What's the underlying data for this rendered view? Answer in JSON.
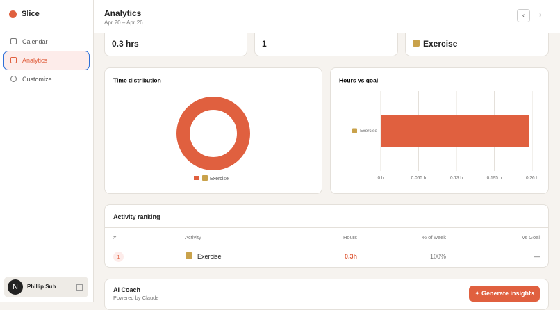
{
  "sidebar": {
    "app_name": "Slice",
    "nav": [
      "Calendar",
      "Analytics",
      "Customize"
    ],
    "user": {
      "initial": "N",
      "name": "Phillip Suh"
    }
  },
  "header": {
    "title": "Analytics",
    "subtitle": "Apr 20 – Apr 26"
  },
  "stats": [
    "0.3 hrs",
    "1",
    "Exercise"
  ],
  "chart_data": [
    {
      "type": "pie",
      "title": "Time distribution",
      "categories": [
        "Exercise"
      ],
      "values": [
        100
      ],
      "colors": [
        "#e0603f"
      ],
      "donut": true
    },
    {
      "type": "bar",
      "title": "Hours vs goal",
      "orientation": "horizontal",
      "categories": [
        "Exercise"
      ],
      "values": [
        0.255
      ],
      "color": "#e0603f",
      "xlim": [
        0,
        0.26
      ],
      "xticks": [
        {
          "value": 0,
          "label": "0 h"
        },
        {
          "value": 0.065,
          "label": "0.065 h"
        },
        {
          "value": 0.13,
          "label": "0.13 h"
        },
        {
          "value": 0.195,
          "label": "0.195 h"
        },
        {
          "value": 0.26,
          "label": "0.26 h"
        }
      ],
      "grid": true
    }
  ],
  "table": {
    "title": "Activity ranking",
    "columns": [
      "#",
      "Activity",
      "Hours",
      "% of week",
      "vs Goal"
    ],
    "rows": [
      [
        "1",
        "Exercise",
        "0.3h",
        "100%",
        "—"
      ]
    ]
  },
  "ai_coach": {
    "title": "AI Coach",
    "subtitle": "Powered by Claude",
    "button": "✦ Generate insights"
  }
}
